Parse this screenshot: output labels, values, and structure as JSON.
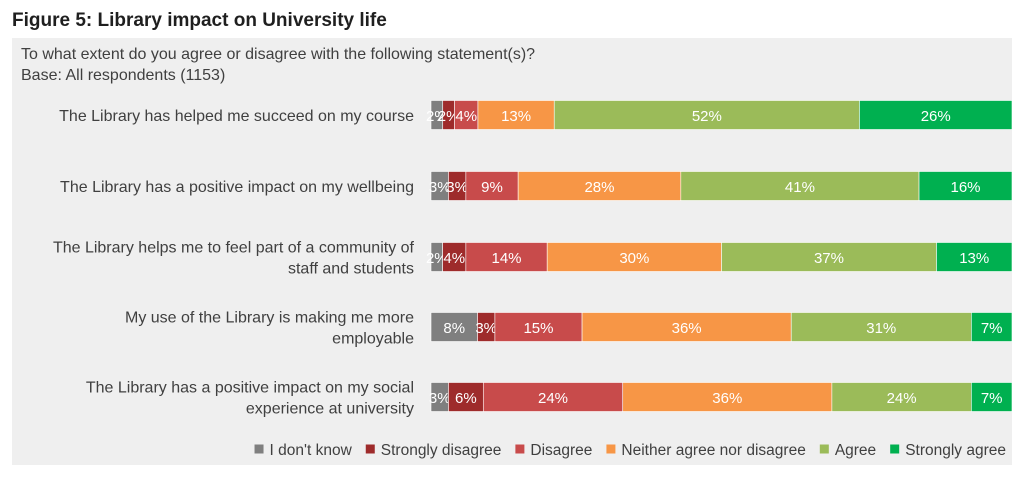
{
  "figure": {
    "title": "Figure 5: Library impact on University life",
    "question": "To what extent do you agree or disagree with the following statement(s)?",
    "base": "Base: All respondents (1153)"
  },
  "chart_data": {
    "type": "bar",
    "orientation": "horizontal",
    "stacked": true,
    "percent_stacked": true,
    "title": "",
    "xlabel": "",
    "ylabel": "",
    "xlim": [
      0,
      100
    ],
    "grid": false,
    "legend_position": "bottom-right",
    "categories": [
      "The Library has helped me succeed on my course",
      "The Library has a positive impact on my wellbeing",
      "The Library helps me to feel part of a community of staff and students",
      "My use of the Library is making me more employable",
      "The Library has a positive impact on my social experience at university"
    ],
    "category_lines": [
      [
        "The Library has helped me succeed on my course"
      ],
      [
        "The Library has a positive impact on my wellbeing"
      ],
      [
        "The Library helps me to feel part of a community of",
        "staff and students"
      ],
      [
        "My use of the Library is making me more",
        "employable"
      ],
      [
        "The Library has a positive impact on my social",
        "experience at university"
      ]
    ],
    "series": [
      {
        "name": "I don't know",
        "color": "#7f7f7f",
        "values": [
          2,
          3,
          2,
          8,
          3
        ]
      },
      {
        "name": "Strongly disagree",
        "color": "#9e2b2b",
        "values": [
          2,
          3,
          4,
          3,
          6
        ]
      },
      {
        "name": "Disagree",
        "color": "#c84b4b",
        "values": [
          4,
          9,
          14,
          15,
          24
        ]
      },
      {
        "name": "Neither agree nor disagree",
        "color": "#f79646",
        "values": [
          13,
          28,
          30,
          36,
          36
        ]
      },
      {
        "name": "Agree",
        "color": "#9bbb59",
        "values": [
          52,
          41,
          37,
          31,
          24
        ]
      },
      {
        "name": "Strongly agree",
        "color": "#00b050",
        "values": [
          26,
          16,
          13,
          7,
          7
        ]
      }
    ],
    "data_labels": [
      [
        "2%",
        "2%",
        "4%",
        "13%",
        "52%",
        "26%"
      ],
      [
        "3%",
        "3%",
        "9%",
        "28%",
        "41%",
        "16%"
      ],
      [
        "2%",
        "4%",
        "14%",
        "30%",
        "37%",
        "13%"
      ],
      [
        "8%",
        "3%",
        "15%",
        "36%",
        "31%",
        "7%"
      ],
      [
        "3%",
        "6%",
        "24%",
        "36%",
        "24%",
        "7%"
      ]
    ]
  }
}
